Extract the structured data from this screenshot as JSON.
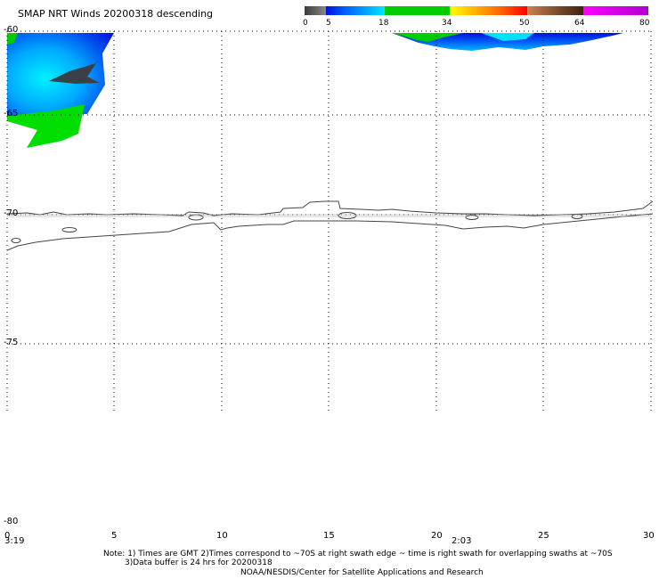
{
  "title": "SMAP NRT Winds  20200318 descending",
  "colorbar": {
    "labels": [
      "0",
      "5",
      "18",
      "34",
      "50",
      "64",
      "80"
    ],
    "segments": [
      {
        "from": 0,
        "to": 5,
        "color": "#555555"
      },
      {
        "from": 5,
        "to": 18,
        "color": "#00a0ff"
      },
      {
        "from": 18,
        "to": 34,
        "color": "#00c800"
      },
      {
        "from": 34,
        "to": 50,
        "color": "#ff9000"
      },
      {
        "from": 50,
        "to": 64,
        "color": "#8b5a3c"
      },
      {
        "from": 64,
        "to": 80,
        "color": "#d000d0"
      }
    ]
  },
  "axes": {
    "y_labels": [
      "-60",
      "-65",
      "-70",
      "-75",
      "-80"
    ],
    "x_labels": [
      "0",
      "5",
      "10",
      "15",
      "20",
      "25",
      "30"
    ],
    "time_labels": [
      "3:19",
      "2:03"
    ],
    "grid": "dotted"
  },
  "notes": {
    "line1": "Note: 1) Times are GMT 2)Times correspond to ~70S at right swath edge ~ time is right swath for overlapping swaths at ~70S",
    "line2": "3)Data buffer is 24 hrs for 20200318",
    "line3": "NOAA/NESDIS/Center for Satellite Applications and Research"
  }
}
